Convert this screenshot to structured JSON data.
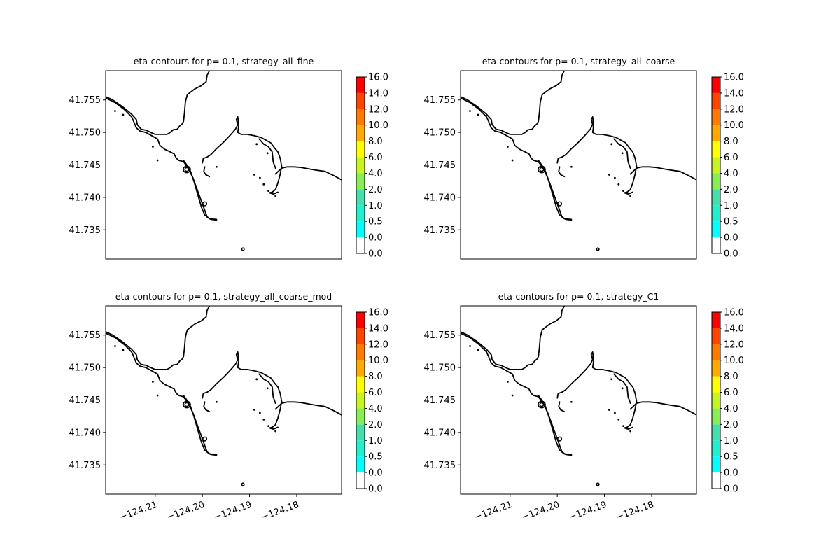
{
  "chart_data": [
    {
      "type": "contour",
      "title": "eta-contours for p= 0.1, strategy_all_fine",
      "xlim": [
        -124.2205,
        -124.1705
      ],
      "ylim": [
        41.7305,
        41.7595
      ],
      "yticks": [
        41.735,
        41.74,
        41.745,
        41.75,
        41.755
      ],
      "ytick_labels": [
        "41.735",
        "41.740",
        "41.745",
        "41.750",
        "41.755"
      ],
      "xticks": [],
      "xtick_labels": [],
      "colorbar": {
        "levels": [
          "0.0",
          "0.0",
          "0.5",
          "1.0",
          "2.0",
          "4.0",
          "6.0",
          "8.0",
          "10.0",
          "12.0",
          "14.0",
          "16.0"
        ],
        "colors": [
          "#ffffff",
          "#00ffff",
          "#22efcd",
          "#44dfaa",
          "#88ee55",
          "#c8f522",
          "#ffff00",
          "#ffaa00",
          "#ff7b00",
          "#ff4400",
          "#ff0000"
        ]
      }
    },
    {
      "type": "contour",
      "title": "eta-contours for p= 0.1, strategy_all_coarse",
      "xlim": [
        -124.2205,
        -124.1705
      ],
      "ylim": [
        41.7305,
        41.7595
      ],
      "yticks": [
        41.735,
        41.74,
        41.745,
        41.75,
        41.755
      ],
      "ytick_labels": [
        "41.735",
        "41.740",
        "41.745",
        "41.750",
        "41.755"
      ],
      "xticks": [],
      "xtick_labels": [],
      "colorbar": {
        "levels": [
          "0.0",
          "0.0",
          "0.5",
          "1.0",
          "2.0",
          "4.0",
          "6.0",
          "8.0",
          "10.0",
          "12.0",
          "14.0",
          "16.0"
        ],
        "colors": [
          "#ffffff",
          "#00ffff",
          "#22efcd",
          "#44dfaa",
          "#88ee55",
          "#c8f522",
          "#ffff00",
          "#ffaa00",
          "#ff7b00",
          "#ff4400",
          "#ff0000"
        ]
      }
    },
    {
      "type": "contour",
      "title": "eta-contours for p= 0.1, strategy_all_coarse_mod",
      "xlim": [
        -124.2205,
        -124.1705
      ],
      "ylim": [
        41.7305,
        41.7595
      ],
      "yticks": [
        41.735,
        41.74,
        41.745,
        41.75,
        41.755
      ],
      "ytick_labels": [
        "41.735",
        "41.740",
        "41.745",
        "41.750",
        "41.755"
      ],
      "xticks": [
        -124.21,
        -124.2,
        -124.19,
        -124.18
      ],
      "xtick_labels": [
        "−124.21",
        "−124.20",
        "−124.19",
        "−124.18"
      ],
      "colorbar": {
        "levels": [
          "0.0",
          "0.0",
          "0.5",
          "1.0",
          "2.0",
          "4.0",
          "6.0",
          "8.0",
          "10.0",
          "12.0",
          "14.0",
          "16.0"
        ],
        "colors": [
          "#ffffff",
          "#00ffff",
          "#22efcd",
          "#44dfaa",
          "#88ee55",
          "#c8f522",
          "#ffff00",
          "#ffaa00",
          "#ff7b00",
          "#ff4400",
          "#ff0000"
        ]
      }
    },
    {
      "type": "contour",
      "title": "eta-contours for p= 0.1, strategy_C1",
      "xlim": [
        -124.2205,
        -124.1705
      ],
      "ylim": [
        41.7305,
        41.7595
      ],
      "yticks": [
        41.735,
        41.74,
        41.745,
        41.75,
        41.755
      ],
      "ytick_labels": [
        "41.735",
        "41.740",
        "41.745",
        "41.750",
        "41.755"
      ],
      "xticks": [
        -124.21,
        -124.2,
        -124.19,
        -124.18
      ],
      "xtick_labels": [
        "−124.21",
        "−124.20",
        "−124.19",
        "−124.18"
      ],
      "colorbar": {
        "levels": [
          "0.0",
          "0.0",
          "0.5",
          "1.0",
          "2.0",
          "4.0",
          "6.0",
          "8.0",
          "10.0",
          "12.0",
          "14.0",
          "16.0"
        ],
        "colors": [
          "#ffffff",
          "#00ffff",
          "#22efcd",
          "#44dfaa",
          "#88ee55",
          "#c8f522",
          "#ffff00",
          "#ffaa00",
          "#ff7b00",
          "#ff4400",
          "#ff0000"
        ]
      }
    }
  ],
  "coastline": {
    "color": "#000000",
    "lines": [
      [
        [
          -124.2205,
          41.7555
        ],
        [
          -124.219,
          41.755
        ],
        [
          -124.217,
          41.754
        ],
        [
          -124.215,
          41.7528
        ],
        [
          -124.214,
          41.752
        ],
        [
          -124.2138,
          41.7512
        ],
        [
          -124.213,
          41.7505
        ],
        [
          -124.2118,
          41.7503
        ],
        [
          -124.211,
          41.75
        ],
        [
          -124.21,
          41.7497
        ],
        [
          -124.2085,
          41.7497
        ],
        [
          -124.2075,
          41.7497
        ],
        [
          -124.2068,
          41.75
        ],
        [
          -124.2062,
          41.7504
        ],
        [
          -124.2053,
          41.7505
        ],
        [
          -124.2048,
          41.751
        ],
        [
          -124.2043,
          41.7513
        ],
        [
          -124.204,
          41.7517
        ],
        [
          -124.2038,
          41.753
        ],
        [
          -124.2036,
          41.7547
        ],
        [
          -124.2032,
          41.7558
        ],
        [
          -124.2025,
          41.7562
        ],
        [
          -124.2016,
          41.7567
        ],
        [
          -124.2002,
          41.7572
        ],
        [
          -124.1992,
          41.7578
        ],
        [
          -124.199,
          41.7588
        ],
        [
          -124.1985,
          41.7595
        ]
      ],
      [
        [
          -124.2205,
          41.7553
        ],
        [
          -124.2185,
          41.7546
        ],
        [
          -124.2165,
          41.7535
        ],
        [
          -124.215,
          41.7524
        ],
        [
          -124.2145,
          41.7516
        ],
        [
          -124.214,
          41.7507
        ],
        [
          -124.2132,
          41.7502
        ],
        [
          -124.212,
          41.75
        ],
        [
          -124.2105,
          41.7494
        ],
        [
          -124.2095,
          41.749
        ],
        [
          -124.209,
          41.748
        ],
        [
          -124.208,
          41.7474
        ],
        [
          -124.2068,
          41.747
        ],
        [
          -124.206,
          41.7467
        ],
        [
          -124.2055,
          41.746
        ],
        [
          -124.205,
          41.7457
        ],
        [
          -124.204,
          41.7455
        ],
        [
          -124.203,
          41.7445
        ],
        [
          -124.202,
          41.743
        ],
        [
          -124.201,
          41.741
        ],
        [
          -124.2,
          41.739
        ],
        [
          -124.199,
          41.737
        ],
        [
          -124.1982,
          41.7366
        ],
        [
          -124.197,
          41.7365
        ]
      ],
      [
        [
          -124.204,
          41.7457
        ],
        [
          -124.2033,
          41.745
        ],
        [
          -124.2025,
          41.744
        ],
        [
          -124.2018,
          41.7425
        ],
        [
          -124.201,
          41.7405
        ],
        [
          -124.2002,
          41.7385
        ],
        [
          -124.1995,
          41.7373
        ],
        [
          -124.1985,
          41.7367
        ],
        [
          -124.197,
          41.7366
        ]
      ],
      [
        [
          -124.2,
          41.7453
        ],
        [
          -124.1998,
          41.746
        ],
        [
          -124.199,
          41.7462
        ],
        [
          -124.1982,
          41.7466
        ],
        [
          -124.197,
          41.7475
        ],
        [
          -124.1955,
          41.7485
        ],
        [
          -124.1942,
          41.7495
        ],
        [
          -124.193,
          41.7505
        ],
        [
          -124.1925,
          41.7512
        ],
        [
          -124.1928,
          41.752
        ],
        [
          -124.1925,
          41.7524
        ],
        [
          -124.1923,
          41.751
        ],
        [
          -124.1925,
          41.75
        ],
        [
          -124.1918,
          41.7497
        ],
        [
          -124.1905,
          41.7497
        ],
        [
          -124.189,
          41.7495
        ],
        [
          -124.1875,
          41.7492
        ],
        [
          -124.1865,
          41.7488
        ],
        [
          -124.1855,
          41.7484
        ],
        [
          -124.1848,
          41.7477
        ],
        [
          -124.184,
          41.747
        ],
        [
          -124.1835,
          41.746
        ],
        [
          -124.1832,
          41.7448
        ],
        [
          -124.1835,
          41.7436
        ],
        [
          -124.184,
          41.7422
        ],
        [
          -124.1845,
          41.7412
        ],
        [
          -124.1852,
          41.7408
        ],
        [
          -124.1858,
          41.7407
        ],
        [
          -124.185,
          41.7405
        ],
        [
          -124.184,
          41.7408
        ]
      ],
      [
        [
          -124.1995,
          41.7447
        ],
        [
          -124.1997,
          41.744
        ],
        [
          -124.1993,
          41.7435
        ],
        [
          -124.1985,
          41.7432
        ]
      ],
      [
        [
          -124.188,
          41.749
        ],
        [
          -124.187,
          41.7482
        ],
        [
          -124.186,
          41.7478
        ],
        [
          -124.1852,
          41.747
        ],
        [
          -124.185,
          41.7455
        ],
        [
          -124.1845,
          41.7445
        ]
      ],
      [
        [
          -124.1845,
          41.7436
        ],
        [
          -124.1832,
          41.7445
        ],
        [
          -124.182,
          41.7447
        ],
        [
          -124.1805,
          41.7447
        ],
        [
          -124.179,
          41.7446
        ],
        [
          -124.1775,
          41.7444
        ],
        [
          -124.176,
          41.7442
        ],
        [
          -124.174,
          41.744
        ],
        [
          -124.172,
          41.7433
        ],
        [
          -124.1705,
          41.7427
        ]
      ]
    ],
    "blobs": [
      {
        "lon": -124.2033,
        "lat": 41.7443,
        "rx": 0.00075,
        "ry": 0.0005
      },
      {
        "lon": -124.2033,
        "lat": 41.7443,
        "rx": 0.0004,
        "ry": 0.00028
      },
      {
        "lon": -124.1995,
        "lat": 41.739,
        "rx": 0.0004,
        "ry": 0.0003
      },
      {
        "lon": -124.1914,
        "lat": 41.732,
        "rx": 0.00025,
        "ry": 0.0002
      }
    ],
    "dots": [
      [
        -124.2185,
        41.7533
      ],
      [
        -124.2168,
        41.7527
      ],
      [
        -124.2105,
        41.7478
      ],
      [
        -124.2095,
        41.7457
      ],
      [
        -124.197,
        41.7447
      ],
      [
        -124.1885,
        41.7482
      ],
      [
        -124.1862,
        41.7468
      ],
      [
        -124.1845,
        41.7402
      ],
      [
        -124.189,
        41.7435
      ],
      [
        -124.1878,
        41.743
      ],
      [
        -124.187,
        41.742
      ],
      [
        -124.186,
        41.741
      ]
    ]
  }
}
